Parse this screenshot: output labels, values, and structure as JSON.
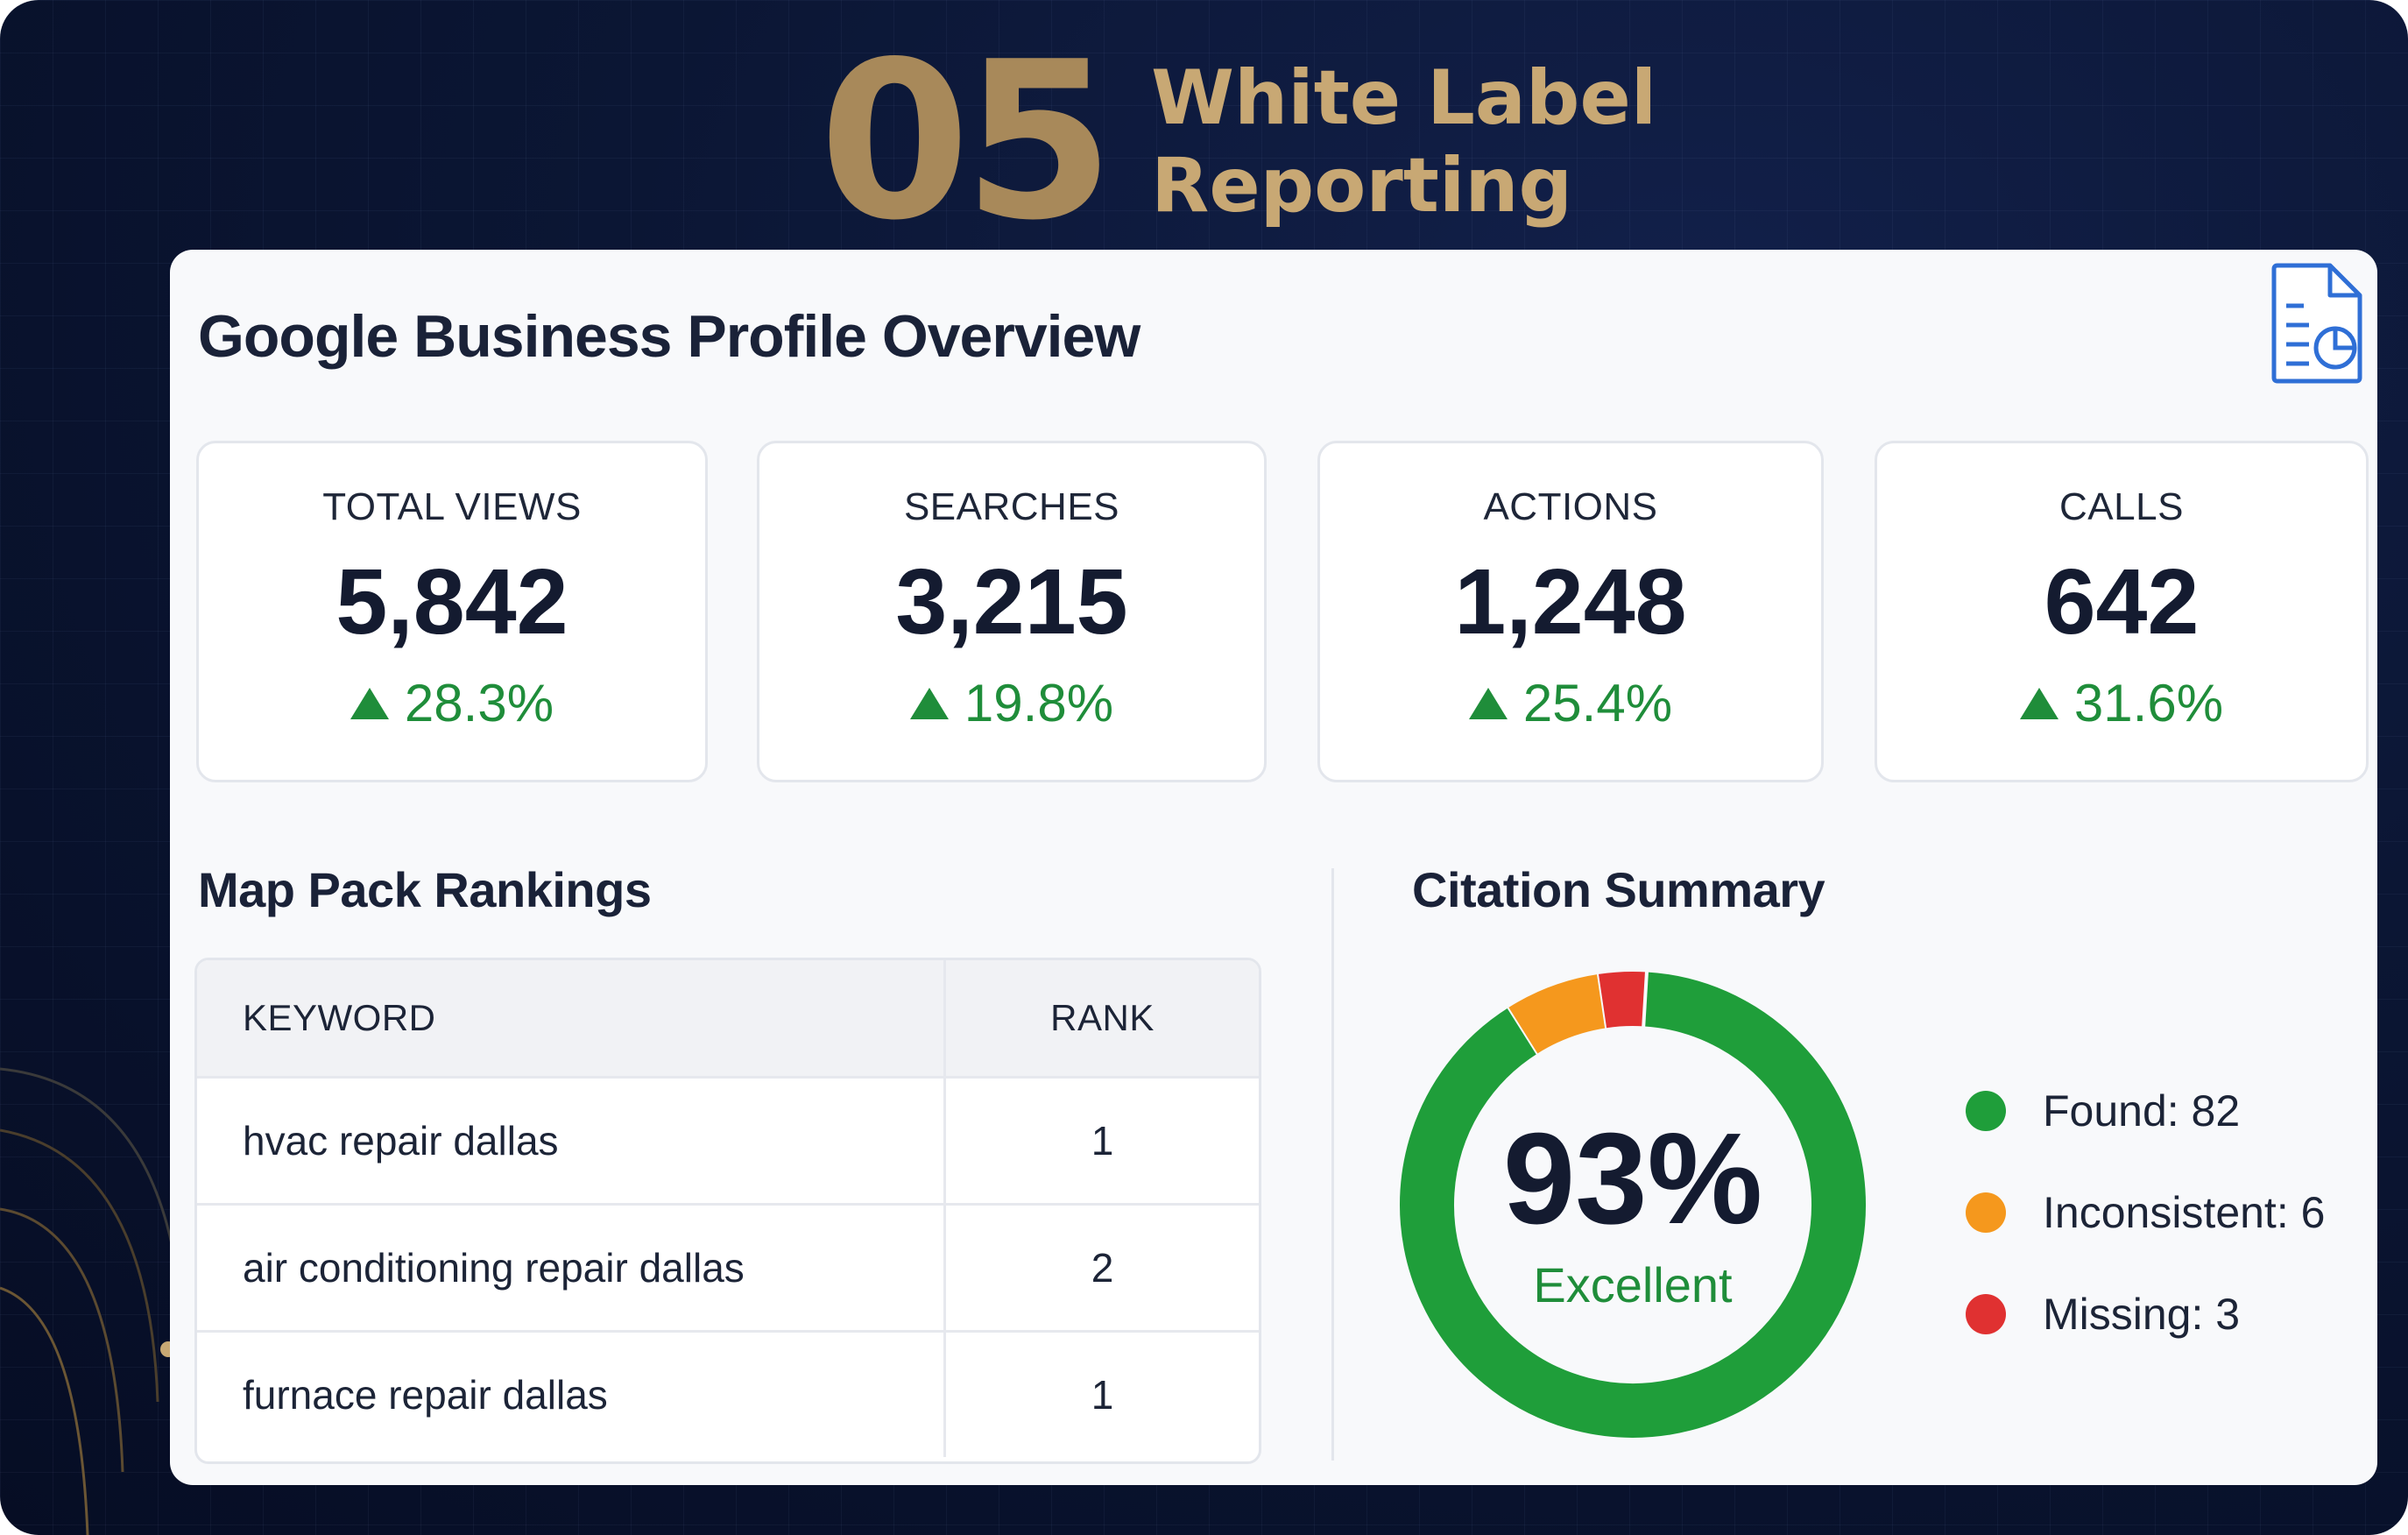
{
  "header": {
    "number": "05",
    "title_line1": "White Label",
    "title_line2": "Reporting"
  },
  "report": {
    "title": "Google Business Profile Overview",
    "icon": "report-document-chart-icon",
    "stats": [
      {
        "label": "TOTAL VIEWS",
        "value": "5,842",
        "change": "28.3%"
      },
      {
        "label": "SEARCHES",
        "value": "3,215",
        "change": "19.8%"
      },
      {
        "label": "ACTIONS",
        "value": "1,248",
        "change": "25.4%"
      },
      {
        "label": "CALLS",
        "value": "642",
        "change": "31.6%"
      }
    ],
    "change_icon": "up-triangle-icon"
  },
  "rankings": {
    "title": "Map Pack Rankings",
    "columns": [
      "KEYWORD",
      "RANK"
    ],
    "rows": [
      {
        "keyword": "hvac repair dallas",
        "rank": "1"
      },
      {
        "keyword": "air conditioning repair dallas",
        "rank": "2"
      },
      {
        "keyword": "furnace repair dallas",
        "rank": "1"
      }
    ]
  },
  "citations": {
    "title": "Citation Summary",
    "percent": "93%",
    "rating": "Excellent",
    "legend": [
      {
        "label": "Found: 82",
        "color": "#1f9e3a"
      },
      {
        "label": "Inconsistent: 6",
        "color": "#f5981d"
      },
      {
        "label": "Missing: 3",
        "color": "#e03131"
      }
    ]
  },
  "chart_data": {
    "type": "pie",
    "categories": [
      "Found",
      "Inconsistent",
      "Missing"
    ],
    "values": [
      82,
      6,
      3
    ],
    "colors": [
      "#1f9e3a",
      "#f5981d",
      "#e03131"
    ],
    "title": "Citation Summary"
  },
  "colors": {
    "background": "#0b1634",
    "accent_gold": "#c8a874",
    "positive_green": "#1f8d3a"
  }
}
